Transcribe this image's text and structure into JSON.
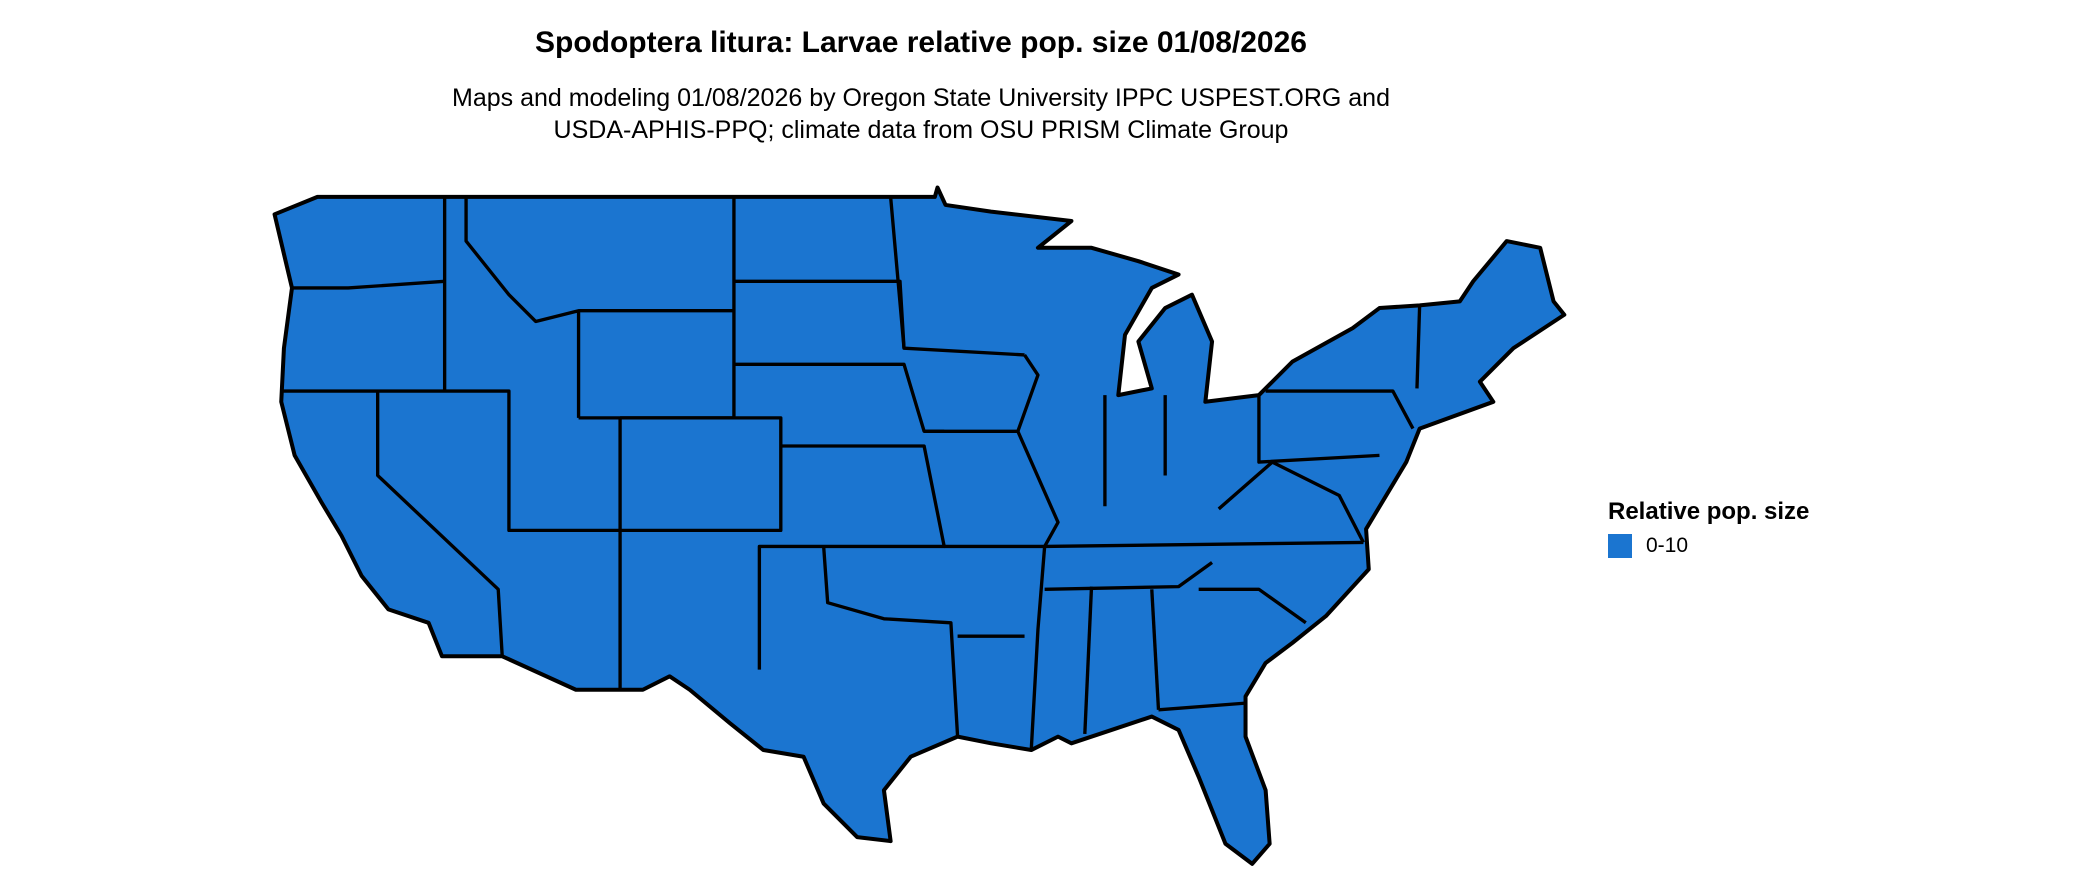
{
  "title": "Spodoptera litura: Larvae relative pop. size 01/08/2026",
  "subtitle_line1": "Maps and modeling 01/08/2026 by Oregon State University IPPC USPEST.ORG and",
  "subtitle_line2": "USDA-APHIS-PPQ; climate data from OSU PRISM Climate Group",
  "map": {
    "region": "Contiguous United States",
    "fill_color": "#1b75d0",
    "border_color": "#000000"
  },
  "legend": {
    "title": "Relative pop. size",
    "items": [
      {
        "label": "0-10",
        "color": "#1b75d0"
      }
    ]
  }
}
